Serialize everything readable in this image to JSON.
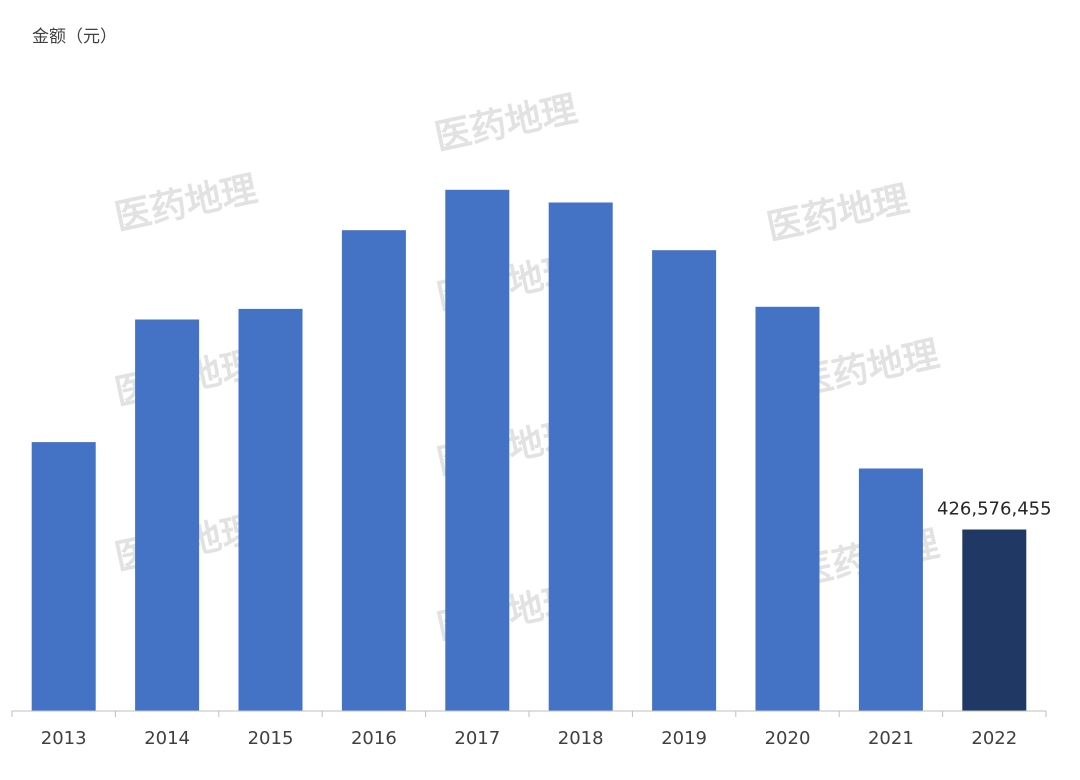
{
  "chart_data": {
    "type": "bar",
    "ylabel": "金额（元）",
    "categories": [
      "2013",
      "2014",
      "2015",
      "2016",
      "2017",
      "2018",
      "2019",
      "2020",
      "2021",
      "2022"
    ],
    "values": [
      632000000,
      920000000,
      945000000,
      1130000000,
      1225000000,
      1195000000,
      1083000000,
      950000000,
      570000000,
      426576455
    ],
    "data_labels": {
      "2022": "426,576,455"
    },
    "ylim": [
      0,
      1530000000
    ],
    "grid": false,
    "legend": "none",
    "colors": {
      "bar": "#4472C4",
      "highlight": "#203864",
      "axis": "#bfbfbf"
    }
  },
  "watermark": "医药地理"
}
